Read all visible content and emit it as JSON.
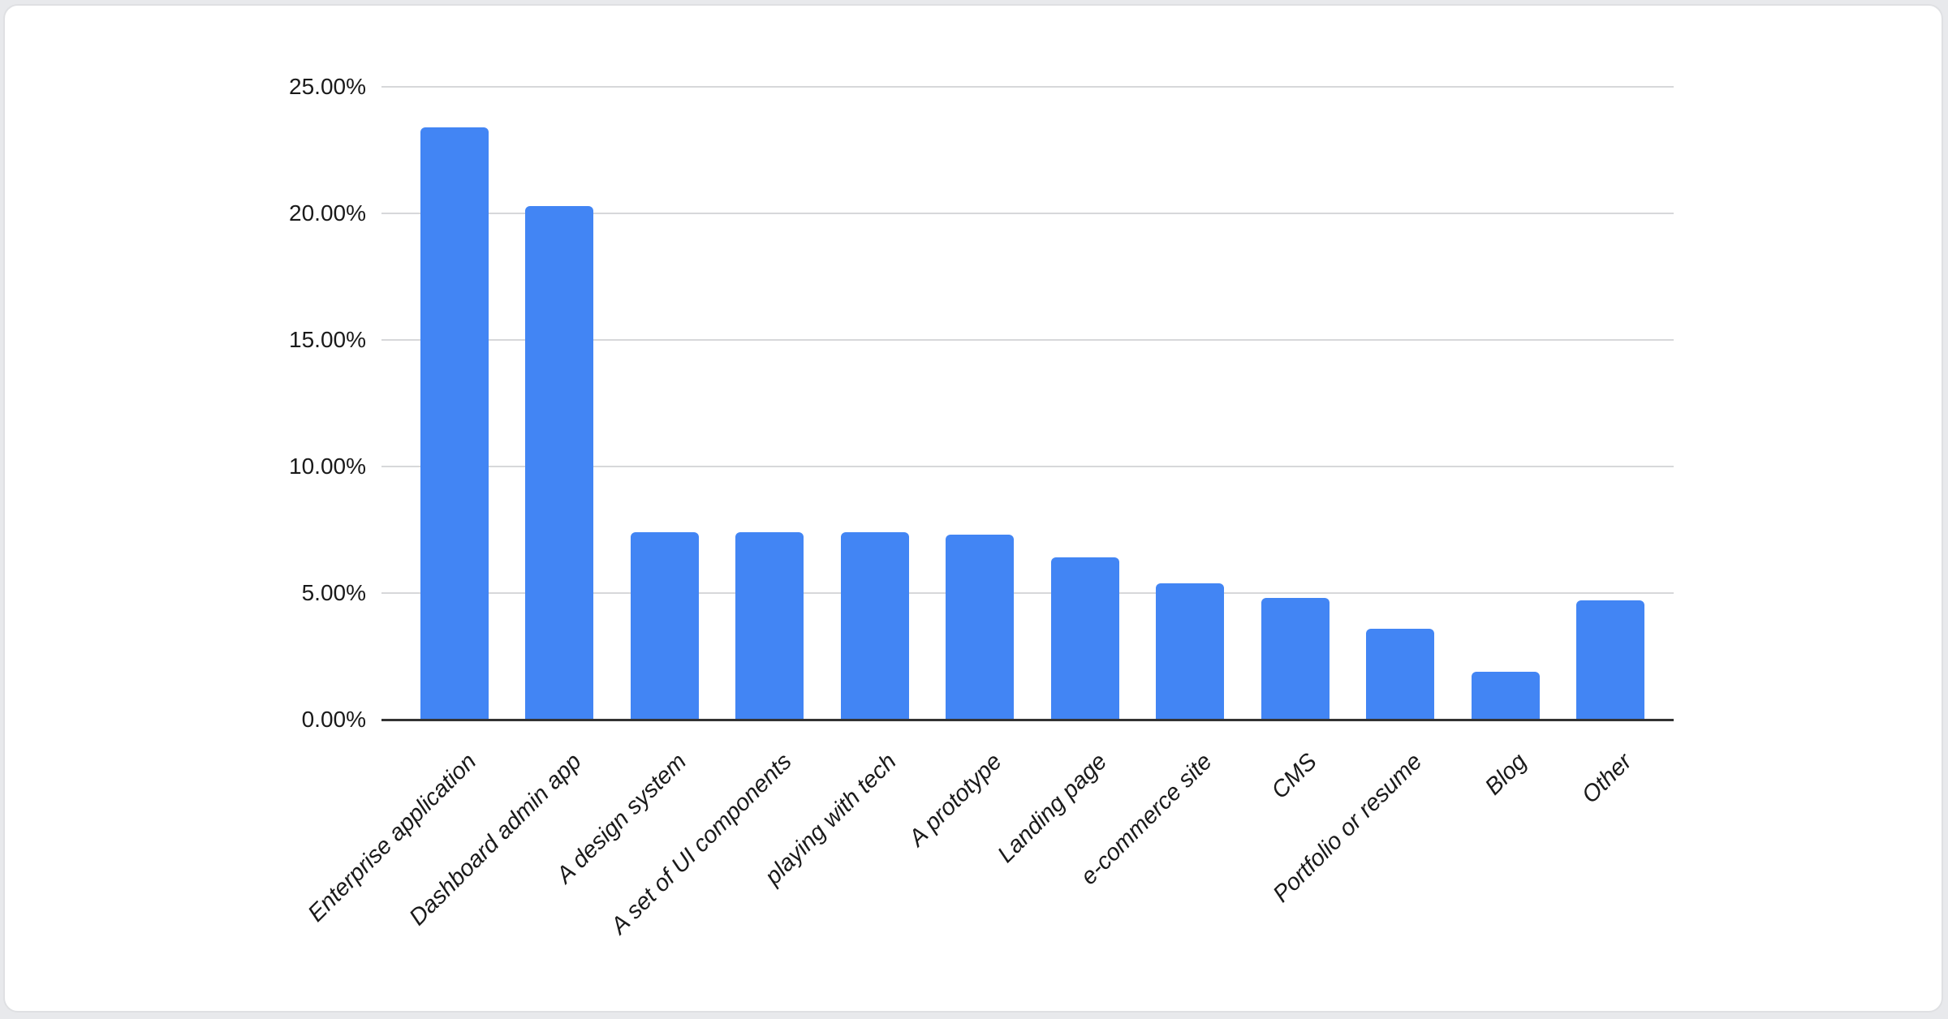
{
  "page": {
    "background_color": "#e8e9ec"
  },
  "card": {
    "background_color": "#ffffff",
    "border_color": "#dfe0e3"
  },
  "chart_data": {
    "type": "bar",
    "title": "",
    "xlabel": "",
    "ylabel": "",
    "categories": [
      "Enterprise application",
      "Dashboard admin app",
      "A design system",
      "A set of UI components",
      "playing with tech",
      "A prototype",
      "Landing page",
      "e-commerce site",
      "CMS",
      "Portfolio or resume",
      "Blog",
      "Other"
    ],
    "values": [
      23.4,
      20.3,
      7.4,
      7.4,
      7.4,
      7.3,
      6.4,
      5.4,
      4.8,
      3.6,
      1.9,
      4.7
    ],
    "value_unit": "%",
    "ylim": [
      0,
      25
    ],
    "y_tick_step": 5,
    "y_tick_labels": [
      "0.00%",
      "5.00%",
      "10.00%",
      "15.00%",
      "20.00%",
      "25.00%"
    ],
    "grid": true,
    "legend_position": "none",
    "x_label_rotation_deg": -45,
    "x_label_style": "italic",
    "colors": {
      "bar": "#4285f4",
      "gridline": "#d7d8da",
      "axis_line": "#333333",
      "tick_label": "#1a1a1a"
    }
  }
}
